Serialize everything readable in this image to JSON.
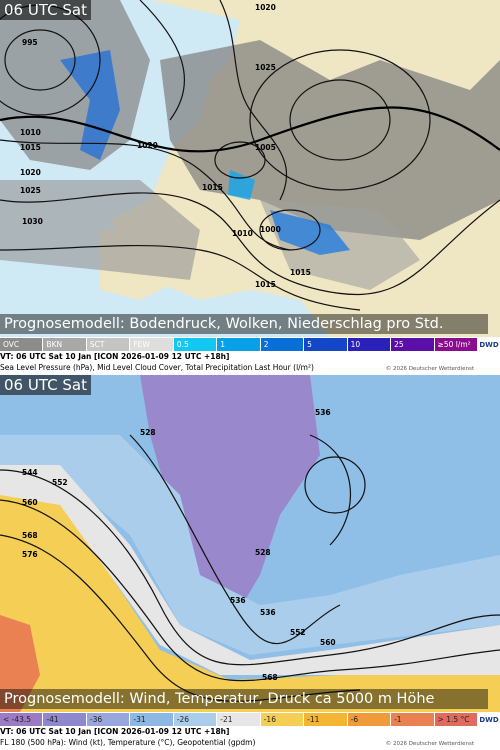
{
  "panels": [
    {
      "time": "06 UTC Sat",
      "caption": "Prognosemodell: Bodendruck, Wolken, Niederschlag pro Std.",
      "legend": [
        {
          "label": "OVC",
          "color": "#8c8c8c"
        },
        {
          "label": "BKN",
          "color": "#a8a8a8"
        },
        {
          "label": "SCT",
          "color": "#c4c4c4"
        },
        {
          "label": "FEW",
          "color": "#dedede"
        },
        {
          "label": "0.5",
          "color": "#12c8f0"
        },
        {
          "label": "1",
          "color": "#0aa0e8"
        },
        {
          "label": "2",
          "color": "#0a6ed8"
        },
        {
          "label": "5",
          "color": "#1446c8"
        },
        {
          "label": "10",
          "color": "#2a22b8"
        },
        {
          "label": "25",
          "color": "#5a10a8"
        },
        {
          "label": "≥50 l/m²",
          "color": "#8c0c90"
        }
      ],
      "valid": "VT: 06 UTC Sat   10 Jan [ICON 2026-01-09 12 UTC +18h]",
      "description": "Sea Level Pressure (hPa), Mid Level Cloud Cover, Total Precipitation Last Hour (l/m²)",
      "copyright": "© 2026 Deutscher Wetterdienst",
      "logo": "DWD",
      "contour_labels": [
        "1020",
        "995",
        "1010",
        "1015",
        "1020",
        "1025",
        "1030",
        "1015",
        "1005",
        "1000",
        "1010",
        "1015",
        "1020",
        "1025",
        "1015"
      ]
    },
    {
      "time": "06 UTC Sat",
      "caption": "Prognosemodell: Wind, Temperatur, Druck ca 5000 m Höhe",
      "legend": [
        {
          "label": "< -43.5",
          "color": "#9b7cc4"
        },
        {
          "label": "-41",
          "color": "#8e88cc"
        },
        {
          "label": "-36",
          "color": "#97a6dc"
        },
        {
          "label": "-31",
          "color": "#8eb8e4"
        },
        {
          "label": "-26",
          "color": "#a9cdea"
        },
        {
          "label": "-21",
          "color": "#e6e6e6"
        },
        {
          "label": "-16",
          "color": "#f5cf55"
        },
        {
          "label": "-11",
          "color": "#f2b534"
        },
        {
          "label": "-6",
          "color": "#f09a3a"
        },
        {
          "label": "-1",
          "color": "#e98152"
        },
        {
          "label": "> 1.5 °C",
          "color": "#e06a5e"
        }
      ],
      "valid": "VT: 06 UTC Sat   10 Jan [ICON 2026-01-09 12 UTC +18h]",
      "description": "FL 180 (500 hPa): Wind (kt), Temperature (°C), Geopotential (gpdm)",
      "copyright": "© 2026 Deutscher Wetterdienst",
      "logo": "DWD",
      "contour_labels": [
        "544",
        "552",
        "560",
        "568",
        "576",
        "528",
        "536",
        "528",
        "536",
        "552",
        "560",
        "568",
        "536"
      ]
    }
  ]
}
